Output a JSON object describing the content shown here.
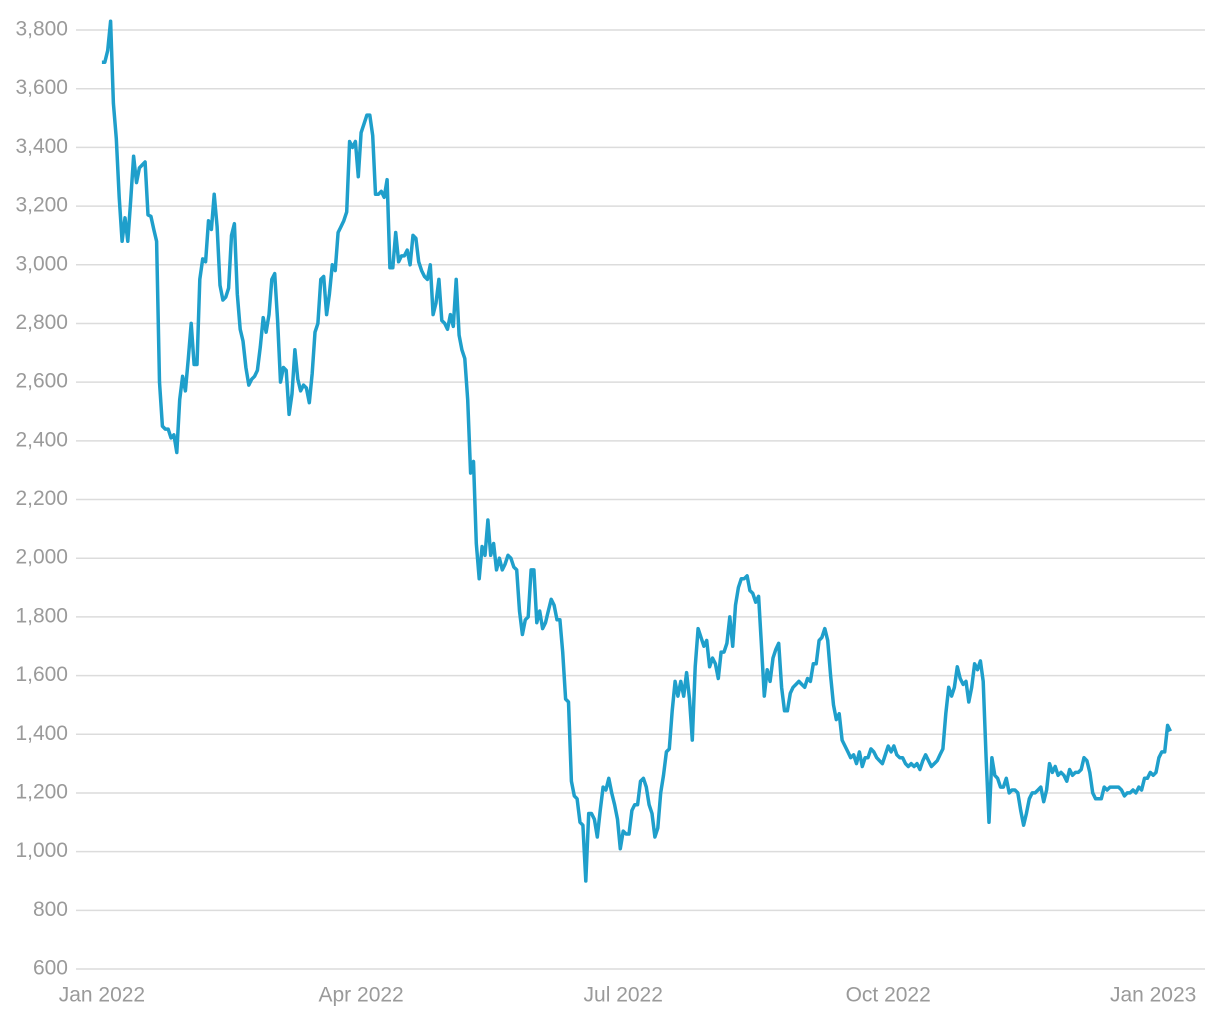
{
  "chart_data": {
    "type": "line",
    "x": [
      0,
      1,
      2,
      3,
      4,
      5,
      6,
      7,
      8,
      9,
      10,
      11,
      12,
      13,
      14,
      15,
      16,
      17,
      18,
      19,
      20,
      21,
      22,
      23,
      24,
      25,
      26,
      27,
      28,
      29,
      30,
      31,
      32,
      33,
      34,
      35,
      36,
      37,
      38,
      39,
      40,
      41,
      42,
      43,
      44,
      45,
      46,
      47,
      48,
      49,
      50,
      51,
      52,
      53,
      54,
      55,
      56,
      57,
      58,
      59,
      60,
      61,
      62,
      63,
      64,
      65,
      66,
      67,
      68,
      69,
      70,
      71,
      72,
      73,
      74,
      75,
      76,
      77,
      78,
      79,
      80,
      81,
      82,
      83,
      84,
      85,
      86,
      87,
      88,
      89,
      90,
      91,
      92,
      93,
      94,
      95,
      96,
      97,
      98,
      99,
      100,
      101,
      102,
      103,
      104,
      105,
      106,
      107,
      108,
      109,
      110,
      111,
      112,
      113,
      114,
      115,
      116,
      117,
      118,
      119,
      120,
      121,
      122,
      123,
      124,
      125,
      126,
      127,
      128,
      129,
      130,
      131,
      132,
      133,
      134,
      135,
      136,
      137,
      138,
      139,
      140,
      141,
      142,
      143,
      144,
      145,
      146,
      147,
      148,
      149,
      150,
      151,
      152,
      153,
      154,
      155,
      156,
      157,
      158,
      159,
      160,
      161,
      162,
      163,
      164,
      165,
      166,
      167,
      168,
      169,
      170,
      171,
      172,
      173,
      174,
      175,
      176,
      177,
      178,
      179,
      180,
      181,
      182,
      183,
      184,
      185,
      186,
      187,
      188,
      189,
      190,
      191,
      192,
      193,
      194,
      195,
      196,
      197,
      198,
      199,
      200,
      201,
      202,
      203,
      204,
      205,
      206,
      207,
      208,
      209,
      210,
      211,
      212,
      213,
      214,
      215,
      216,
      217,
      218,
      219,
      220,
      221,
      222,
      223,
      224,
      225,
      226,
      227,
      228,
      229,
      230,
      231,
      232,
      233,
      234,
      235,
      236,
      237,
      238,
      239,
      240,
      241,
      242,
      243,
      244,
      245,
      246,
      247,
      248,
      249,
      250,
      251,
      252,
      253,
      254,
      255,
      256,
      257,
      258,
      259,
      260,
      261,
      262,
      263,
      264,
      265,
      266,
      267,
      268,
      269,
      270,
      271,
      272,
      273,
      274,
      275,
      276,
      277,
      278,
      279,
      280,
      281,
      282,
      283,
      284,
      285,
      286,
      287,
      288,
      289,
      290,
      291,
      292,
      293,
      294,
      295,
      296,
      297,
      298,
      299,
      300,
      301,
      302,
      303,
      304,
      305,
      306,
      307,
      308,
      309,
      310,
      311,
      312,
      313,
      314,
      315,
      316,
      317,
      318,
      319,
      320,
      321,
      322,
      323,
      324,
      325,
      326,
      327,
      328,
      329,
      330,
      331,
      332,
      333,
      334,
      335,
      336,
      337,
      338,
      339,
      340,
      341,
      342,
      343,
      344,
      345,
      346,
      347,
      348,
      349,
      350,
      351,
      352,
      353,
      354,
      355,
      356,
      357,
      358,
      359,
      360,
      361,
      362,
      363,
      364,
      365,
      366,
      367,
      368,
      369,
      370,
      371
    ],
    "series": [
      {
        "color": "#1f9fcb",
        "values": [
          3690,
          3690,
          3730,
          3830,
          3550,
          3430,
          3230,
          3080,
          3160,
          3080,
          3220,
          3370,
          3280,
          3330,
          3340,
          3350,
          3170,
          3165,
          3120,
          3080,
          2600,
          2450,
          2440,
          2440,
          2410,
          2420,
          2360,
          2540,
          2620,
          2570,
          2680,
          2800,
          2660,
          2660,
          2950,
          3020,
          3010,
          3150,
          3120,
          3240,
          3130,
          2930,
          2880,
          2890,
          2920,
          3100,
          3140,
          2900,
          2780,
          2740,
          2650,
          2590,
          2610,
          2620,
          2640,
          2720,
          2820,
          2770,
          2830,
          2950,
          2970,
          2810,
          2600,
          2650,
          2640,
          2490,
          2560,
          2710,
          2610,
          2570,
          2590,
          2580,
          2530,
          2630,
          2770,
          2800,
          2950,
          2960,
          2830,
          2900,
          3000,
          2980,
          3110,
          3130,
          3150,
          3180,
          3420,
          3400,
          3420,
          3300,
          3450,
          3480,
          3510,
          3510,
          3440,
          3240,
          3240,
          3250,
          3230,
          3290,
          2990,
          2990,
          3110,
          3010,
          3030,
          3030,
          3050,
          3000,
          3100,
          3090,
          3010,
          2980,
          2960,
          2950,
          3000,
          2830,
          2870,
          2950,
          2810,
          2800,
          2780,
          2830,
          2790,
          2950,
          2760,
          2710,
          2680,
          2540,
          2290,
          2330,
          2050,
          1930,
          2040,
          2010,
          2130,
          2010,
          2050,
          1960,
          2000,
          1960,
          1980,
          2010,
          2000,
          1970,
          1960,
          1820,
          1740,
          1790,
          1800,
          1960,
          1960,
          1780,
          1820,
          1760,
          1780,
          1820,
          1860,
          1840,
          1790,
          1790,
          1680,
          1520,
          1510,
          1240,
          1190,
          1180,
          1100,
          1090,
          900,
          1130,
          1130,
          1110,
          1050,
          1140,
          1220,
          1210,
          1250,
          1200,
          1160,
          1110,
          1010,
          1070,
          1060,
          1060,
          1140,
          1160,
          1160,
          1240,
          1250,
          1220,
          1160,
          1130,
          1050,
          1080,
          1200,
          1260,
          1340,
          1350,
          1480,
          1580,
          1530,
          1580,
          1530,
          1610,
          1520,
          1380,
          1630,
          1760,
          1730,
          1700,
          1720,
          1630,
          1660,
          1640,
          1590,
          1680,
          1680,
          1710,
          1800,
          1700,
          1840,
          1900,
          1930,
          1930,
          1940,
          1890,
          1880,
          1850,
          1870,
          1700,
          1530,
          1620,
          1580,
          1660,
          1690,
          1710,
          1560,
          1480,
          1480,
          1540,
          1560,
          1570,
          1580,
          1570,
          1560,
          1590,
          1580,
          1640,
          1640,
          1720,
          1730,
          1760,
          1720,
          1600,
          1500,
          1450,
          1470,
          1380,
          1360,
          1340,
          1320,
          1330,
          1300,
          1340,
          1290,
          1320,
          1320,
          1350,
          1340,
          1320,
          1310,
          1300,
          1330,
          1360,
          1340,
          1360,
          1330,
          1320,
          1320,
          1300,
          1290,
          1300,
          1290,
          1300,
          1280,
          1310,
          1330,
          1310,
          1290,
          1300,
          1310,
          1330,
          1350,
          1470,
          1560,
          1530,
          1560,
          1630,
          1590,
          1570,
          1580,
          1510,
          1560,
          1640,
          1620,
          1650,
          1580,
          1320,
          1100,
          1320,
          1260,
          1250,
          1220,
          1220,
          1250,
          1200,
          1210,
          1210,
          1200,
          1140,
          1090,
          1130,
          1180,
          1200,
          1200,
          1210,
          1220,
          1170,
          1210,
          1300,
          1270,
          1290,
          1260,
          1270,
          1260,
          1240,
          1280,
          1260,
          1270,
          1270,
          1280,
          1320,
          1310,
          1270,
          1200,
          1180,
          1180,
          1180,
          1220,
          1210,
          1220,
          1220,
          1220,
          1220,
          1210,
          1190,
          1200,
          1200,
          1210,
          1200,
          1220,
          1210,
          1250,
          1250,
          1270,
          1260,
          1270,
          1320,
          1340,
          1340,
          1430,
          1410
        ]
      }
    ],
    "xlim": [
      -9,
      383
    ],
    "xticks": [
      {
        "value": 0,
        "label": "Jan 2022"
      },
      {
        "value": 90,
        "label": "Apr 2022"
      },
      {
        "value": 181,
        "label": "Jul 2022"
      },
      {
        "value": 273,
        "label": "Oct 2022"
      },
      {
        "value": 365,
        "label": "Jan 2023"
      }
    ],
    "ylim": [
      600,
      3800
    ],
    "yticks": [
      600,
      800,
      {
        "value": 1000,
        "label": "1,000"
      },
      {
        "value": 1200,
        "label": "1,200"
      },
      {
        "value": 1400,
        "label": "1,400"
      },
      {
        "value": 1600,
        "label": "1,600"
      },
      {
        "value": 1800,
        "label": "1,800"
      },
      {
        "value": 2000,
        "label": "2,000"
      },
      {
        "value": 2200,
        "label": "2,200"
      },
      {
        "value": 2400,
        "label": "2,400"
      },
      {
        "value": 2600,
        "label": "2,600"
      },
      {
        "value": 2800,
        "label": "2,800"
      },
      {
        "value": 3000,
        "label": "3,000"
      },
      {
        "value": 3200,
        "label": "3,200"
      },
      {
        "value": 3400,
        "label": "3,400"
      },
      {
        "value": 3600,
        "label": "3,600"
      },
      {
        "value": 3800,
        "label": "3,800"
      }
    ],
    "grid": true
  }
}
